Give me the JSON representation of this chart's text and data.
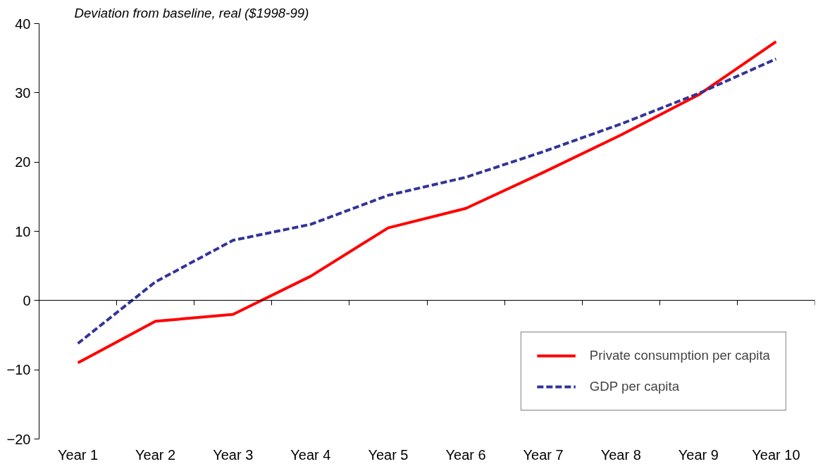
{
  "chart_data": {
    "type": "line",
    "title": "Deviation from baseline, real ($1998-99)",
    "categories": [
      "Year 1",
      "Year 2",
      "Year 3",
      "Year 4",
      "Year 5",
      "Year 6",
      "Year 7",
      "Year 8",
      "Year 9",
      "Year 10"
    ],
    "series": [
      {
        "name": "Private consumption per capita",
        "color": "#ff0000",
        "line_style": "solid",
        "values": [
          -9.0,
          -3.0,
          -2.0,
          3.5,
          10.5,
          13.3,
          18.5,
          23.9,
          29.7,
          37.4
        ]
      },
      {
        "name": "GDP per capita",
        "color": "#333399",
        "line_style": "dashed",
        "values": [
          -6.2,
          2.7,
          8.7,
          11.0,
          15.2,
          17.8,
          21.5,
          25.5,
          29.9,
          34.9
        ]
      }
    ],
    "ylim": [
      -20,
      40
    ],
    "yticks": [
      -20,
      -10,
      0,
      10,
      20,
      30,
      40
    ],
    "legend": "bottom right",
    "marker": "none"
  }
}
